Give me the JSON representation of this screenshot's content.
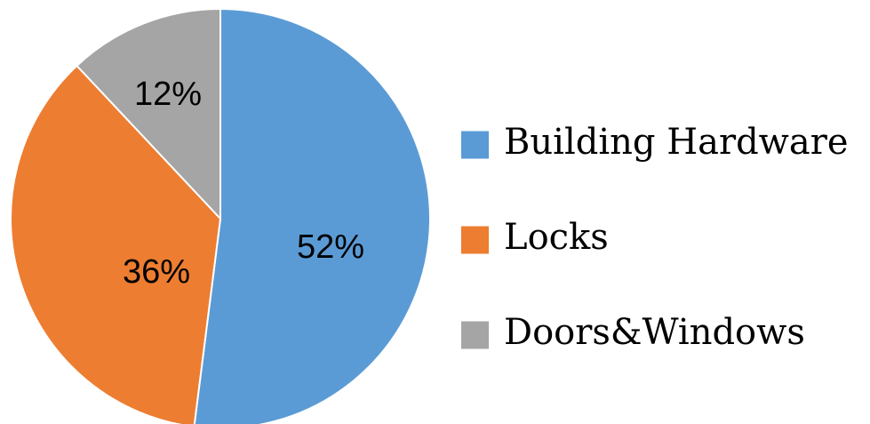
{
  "chart_data": {
    "type": "pie",
    "title": "",
    "categories": [
      "Building Hardware",
      "Locks",
      "Doors&Windows"
    ],
    "values": [
      52,
      36,
      12
    ],
    "data_labels": [
      "52%",
      "36%",
      "12%"
    ],
    "colors": [
      "#5B9BD5",
      "#ED7D31",
      "#A5A5A5"
    ],
    "start_angle_deg": 0,
    "direction": "clockwise",
    "legend_position": "right"
  }
}
